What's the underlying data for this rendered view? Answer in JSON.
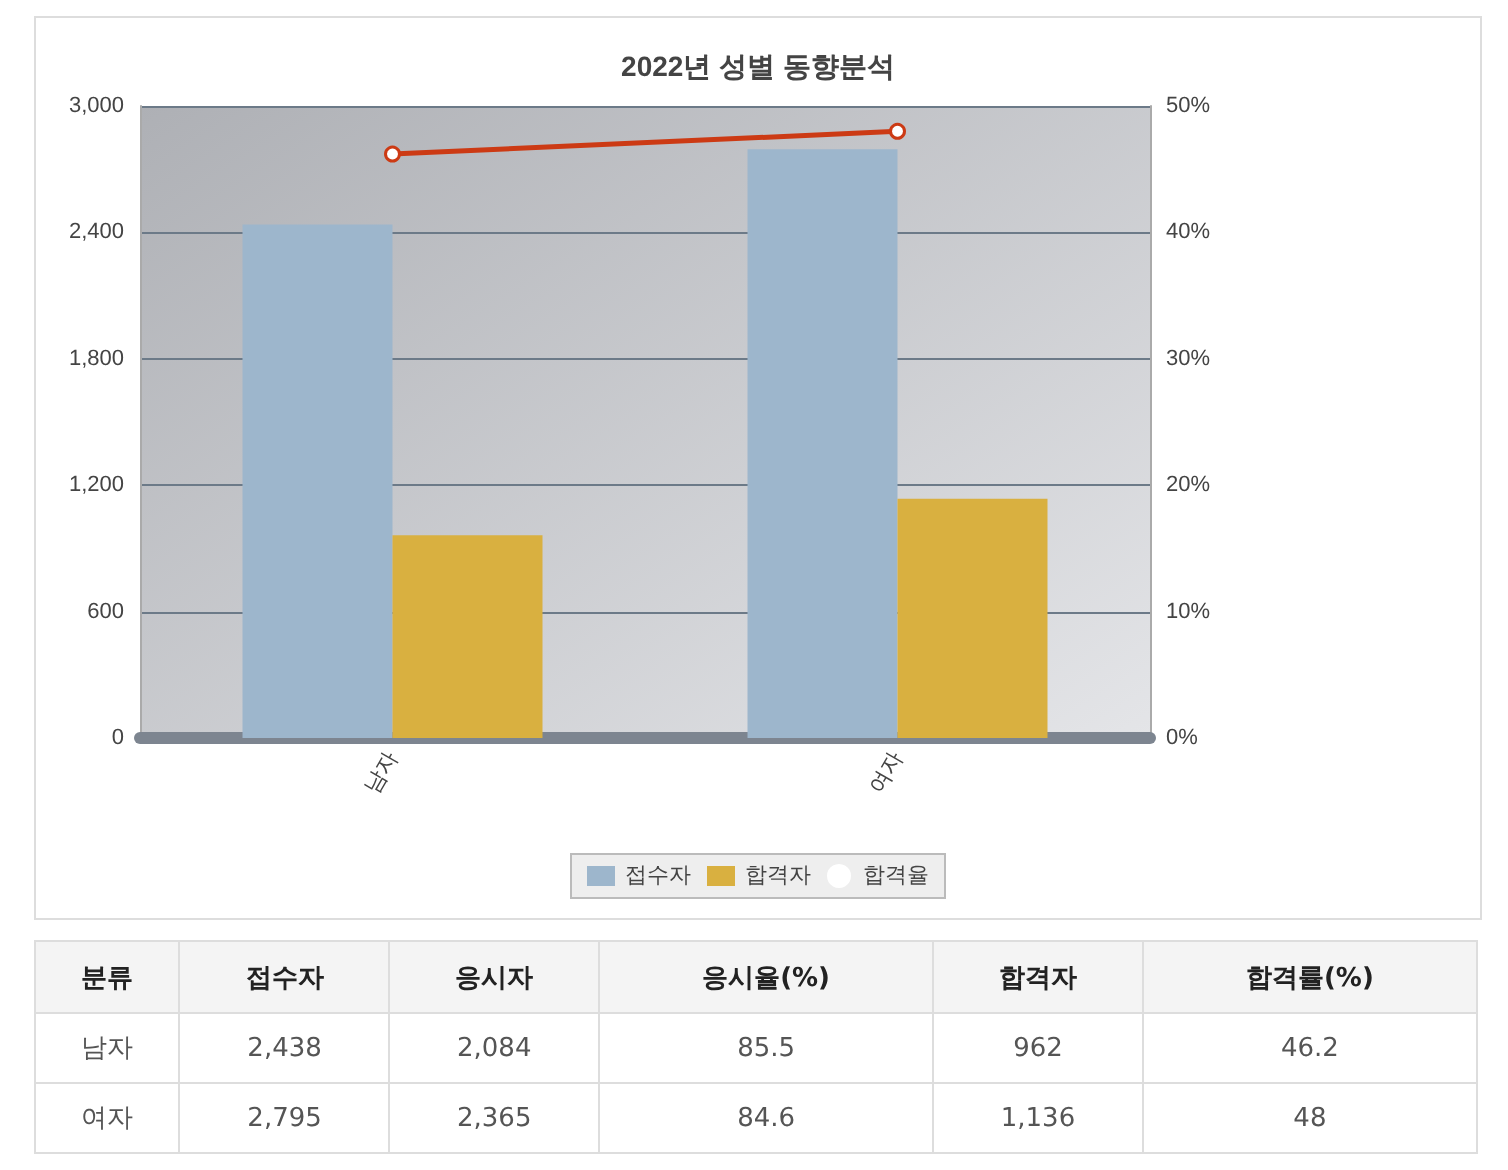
{
  "chart_data": [
    {
      "type": "bar",
      "title": "2022년 성별 동향분석",
      "categories": [
        "남자",
        "여자"
      ],
      "series": [
        {
          "name": "접수자",
          "color": "#9db6cc",
          "values": [
            2438,
            2795
          ]
        },
        {
          "name": "합격자",
          "color": "#d9b040",
          "values": [
            962,
            1136
          ]
        },
        {
          "name": "합격율",
          "type": "line",
          "axis": "y2",
          "color": "#cc3a14",
          "values": [
            46.2,
            48
          ]
        }
      ],
      "ylim": [
        0,
        3000
      ],
      "yticks": [
        {
          "value": 0,
          "label": "0"
        },
        {
          "value": 600,
          "label": "600"
        },
        {
          "value": 1200,
          "label": "1,200"
        },
        {
          "value": 1800,
          "label": "1,800"
        },
        {
          "value": 2400,
          "label": "2,400"
        },
        {
          "value": 3000,
          "label": "3,000"
        }
      ],
      "y2lim": [
        0,
        50
      ],
      "y2ticks": [
        {
          "value": 0,
          "label": "0%"
        },
        {
          "value": 10,
          "label": "10%"
        },
        {
          "value": 20,
          "label": "20%"
        },
        {
          "value": 30,
          "label": "30%"
        },
        {
          "value": 40,
          "label": "40%"
        },
        {
          "value": 50,
          "label": "50%"
        }
      ],
      "grid": "y",
      "legend": "bottom",
      "marker": "circle",
      "line_style": "solid"
    },
    {
      "type": "other",
      "ylabel": "분류",
      "categories": [
        "접수자",
        "응시자",
        "응시율(%)",
        "합격자",
        "합격률(%)"
      ],
      "y_categories": [
        "남자",
        "여자"
      ],
      "cell_labels": [
        [
          "2,438",
          "2,084",
          "85.5",
          "962",
          "46.2"
        ],
        [
          "2,795",
          "2,365",
          "84.6",
          "1,136",
          "48"
        ]
      ]
    }
  ]
}
